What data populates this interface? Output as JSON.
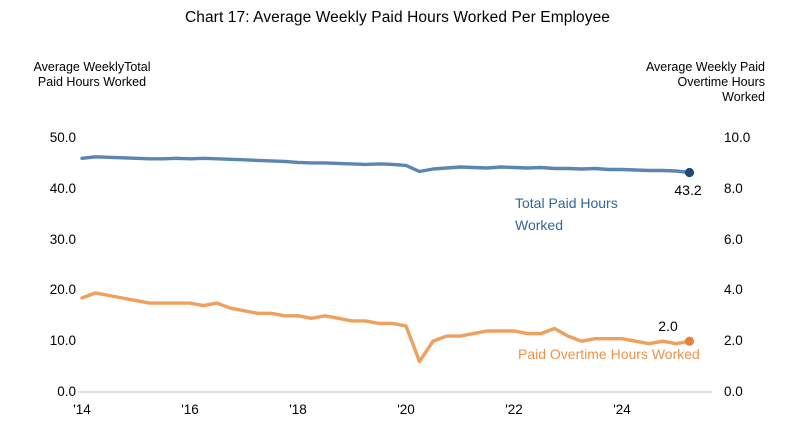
{
  "title": "Chart 17: Average Weekly Paid Hours Worked Per Employee",
  "chart_data": {
    "type": "line",
    "title": "Chart 17: Average Weekly Paid Hours Worked Per Employee",
    "x_start_year": 2014,
    "x_step_years": 0.25,
    "x_tick_labels": [
      "'14",
      "'16",
      "'18",
      "'20",
      "'22",
      "'24"
    ],
    "x_tick_years": [
      2014,
      2016,
      2018,
      2020,
      2022,
      2024
    ],
    "left_axis": {
      "title_lines": [
        "Average WeeklyTotal",
        "Paid Hours Worked"
      ],
      "range": [
        0,
        50
      ],
      "tick_labels": [
        "50.0",
        "40.0",
        "30.0",
        "20.0",
        "10.0",
        "0.0"
      ],
      "tick_values": [
        50,
        40,
        30,
        20,
        10,
        0
      ]
    },
    "right_axis": {
      "title_lines": [
        "Average Weekly Paid",
        "Overtime Hours",
        "Worked"
      ],
      "range": [
        0,
        10
      ],
      "tick_labels": [
        "10.0",
        "8.0",
        "6.0",
        "4.0",
        "2.0",
        "0.0"
      ],
      "tick_values": [
        10,
        8,
        6,
        4,
        2,
        0
      ]
    },
    "grid": "off",
    "legend_position": "inline-labels",
    "series": [
      {
        "id": "total",
        "name": "Total Paid Hours Worked",
        "label_lines": [
          "Total Paid Hours",
          "Worked"
        ],
        "axis": "left",
        "color": "#5B86B4",
        "dot_color": "#1F4977",
        "end_label": "43.2",
        "values": [
          46.0,
          46.3,
          46.2,
          46.1,
          46.0,
          45.9,
          45.9,
          46.0,
          45.9,
          46.0,
          45.9,
          45.8,
          45.7,
          45.6,
          45.5,
          45.4,
          45.2,
          45.1,
          45.1,
          45.0,
          44.9,
          44.8,
          44.9,
          44.8,
          44.6,
          43.4,
          43.9,
          44.1,
          44.3,
          44.2,
          44.1,
          44.3,
          44.2,
          44.1,
          44.2,
          44.0,
          44.0,
          43.9,
          44.0,
          43.8,
          43.8,
          43.7,
          43.6,
          43.6,
          43.5,
          43.2
        ]
      },
      {
        "id": "overtime",
        "name": "Paid Overtime Hours Worked",
        "label_lines": [
          "Paid Overtime Hours Worked"
        ],
        "axis": "right",
        "color": "#EFA05E",
        "dot_color": "#E9823C",
        "end_label": "2.0",
        "values": [
          3.7,
          3.9,
          3.8,
          3.7,
          3.6,
          3.5,
          3.5,
          3.5,
          3.5,
          3.4,
          3.5,
          3.3,
          3.2,
          3.1,
          3.1,
          3.0,
          3.0,
          2.9,
          3.0,
          2.9,
          2.8,
          2.8,
          2.7,
          2.7,
          2.6,
          1.2,
          2.0,
          2.2,
          2.2,
          2.3,
          2.4,
          2.4,
          2.4,
          2.3,
          2.3,
          2.5,
          2.2,
          2.0,
          2.1,
          2.1,
          2.1,
          2.0,
          1.9,
          2.0,
          1.9,
          2.0
        ]
      }
    ],
    "colors": {
      "axis_line": "#D6D6D6",
      "text": "#000000"
    }
  }
}
